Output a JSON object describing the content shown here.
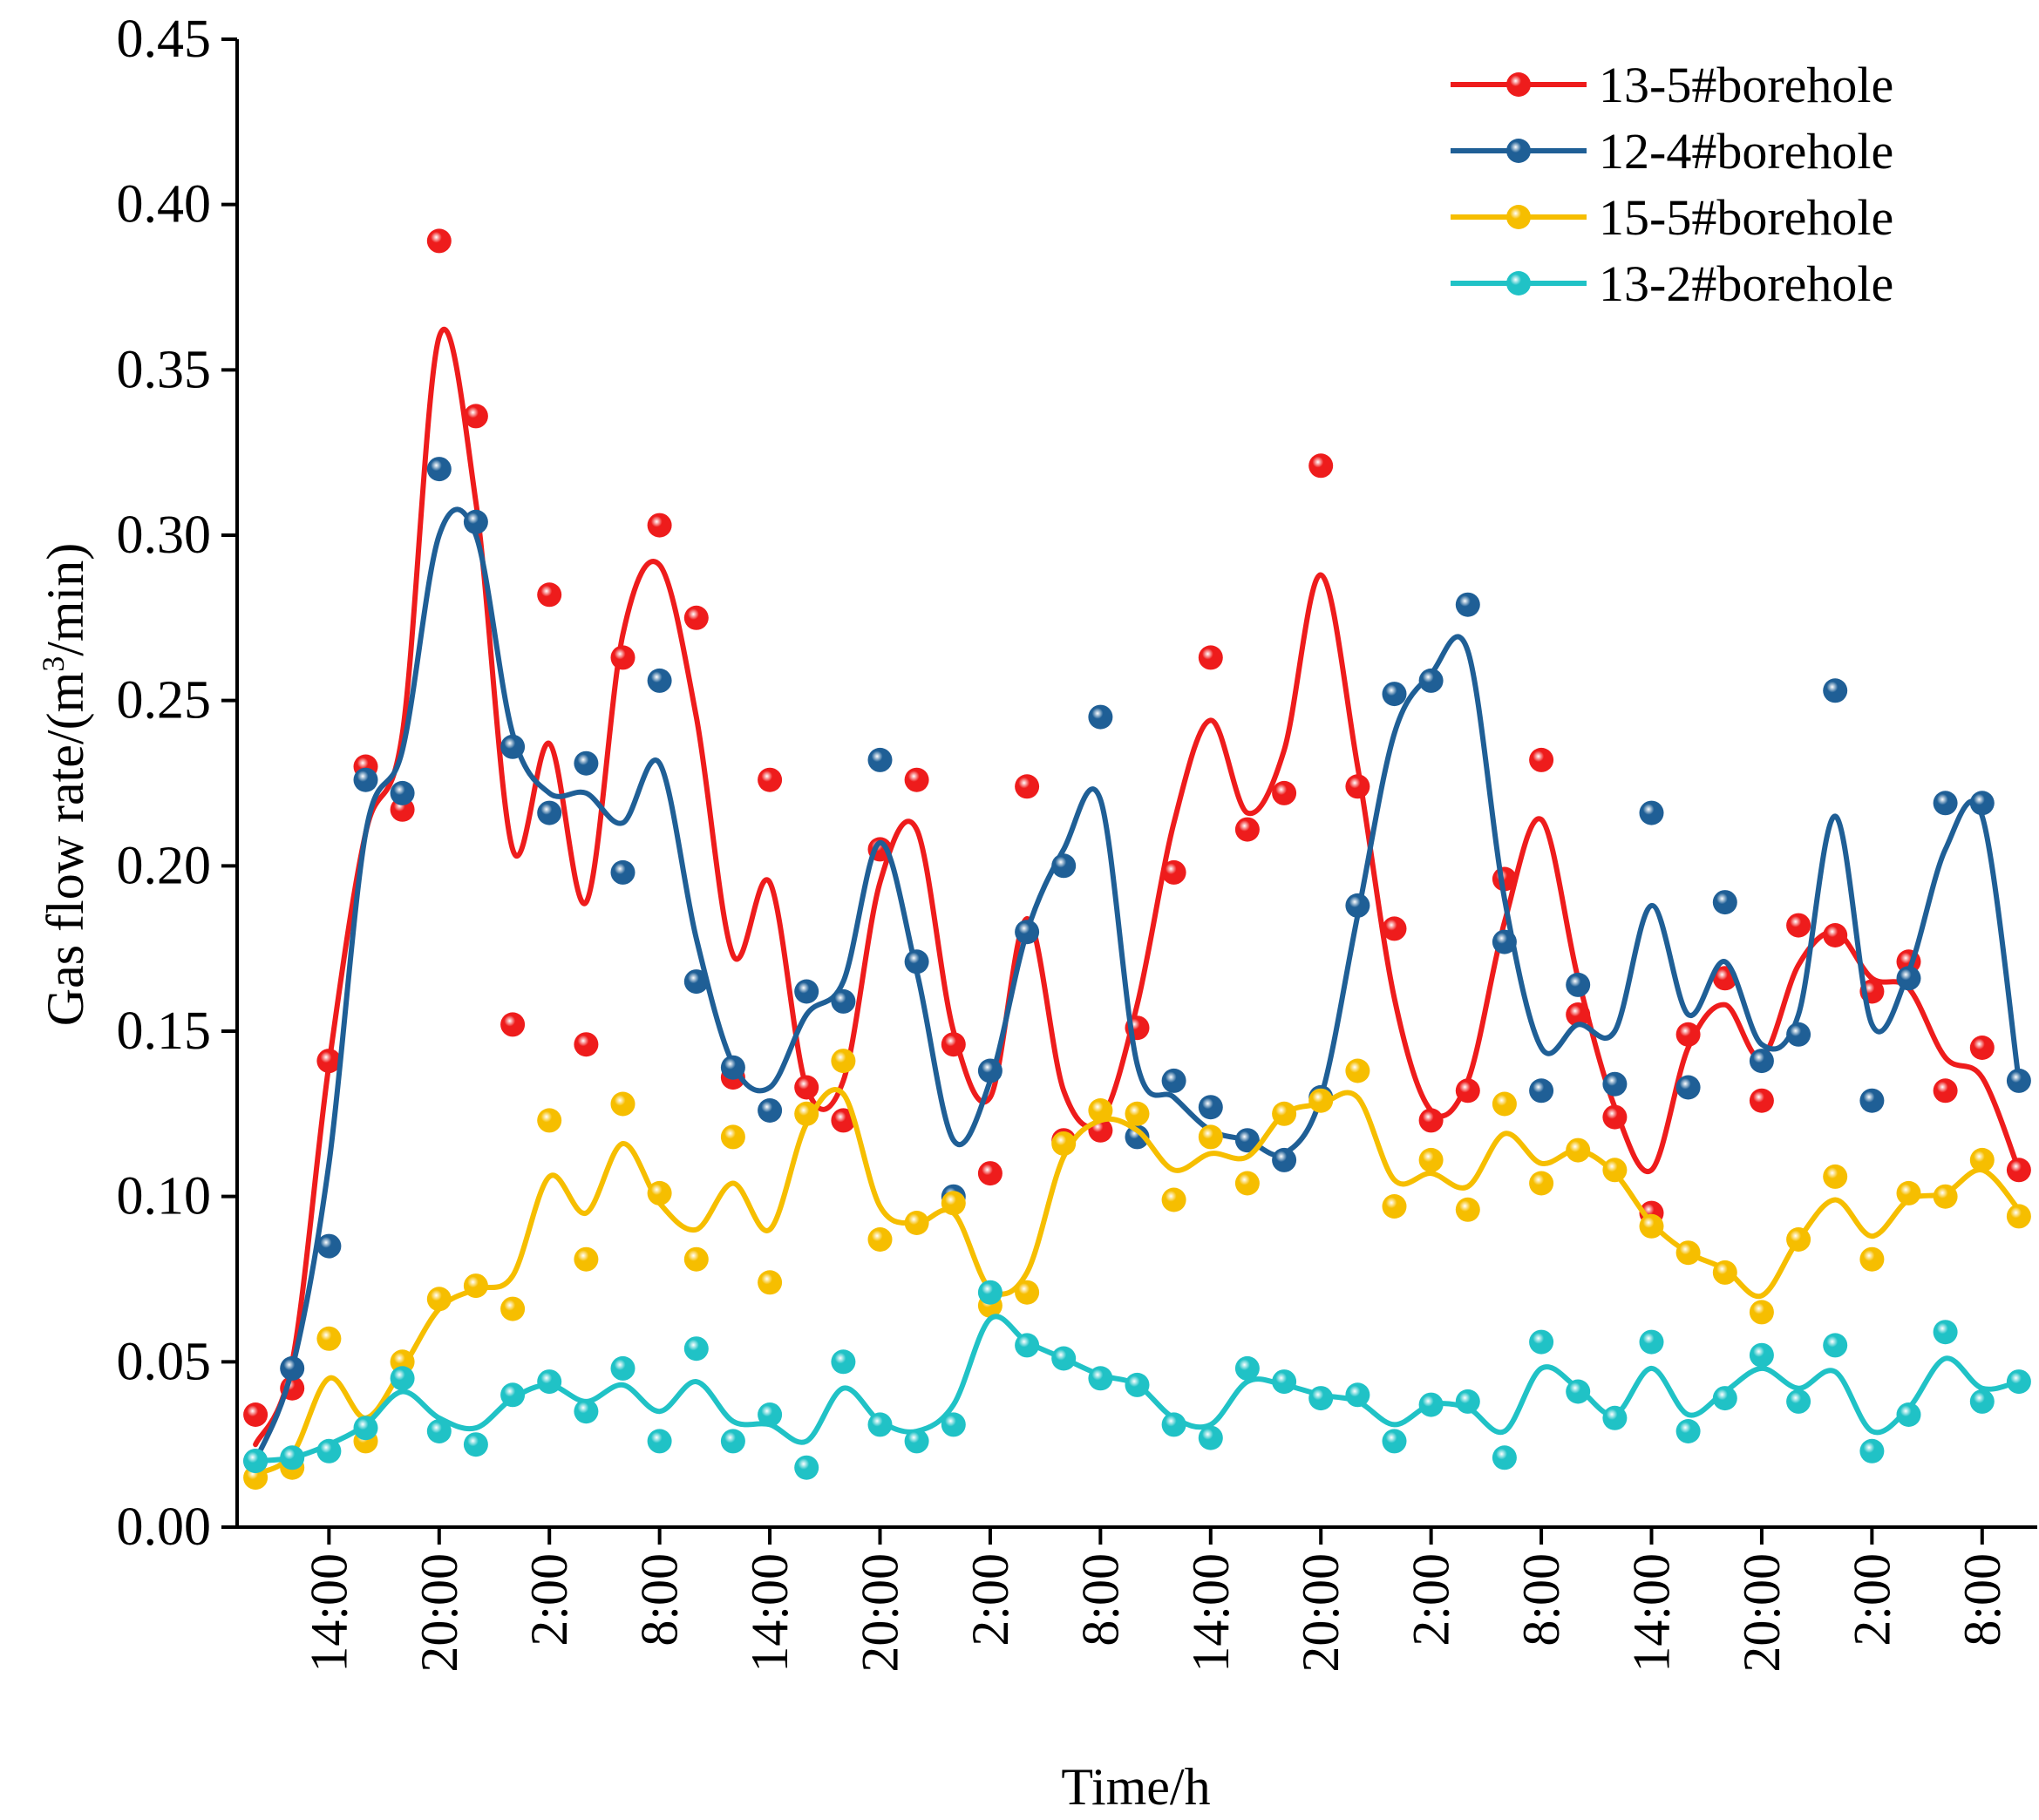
{
  "chart_data": {
    "type": "line",
    "title": "",
    "xlabel": "Time/h",
    "ylabel_prefix": "Gas flow rate/(m",
    "ylabel_superscript": "3",
    "ylabel_suffix": "/min)",
    "ylim": [
      0,
      0.45
    ],
    "yticks": [
      {
        "value": 0.0,
        "label": "0.00"
      },
      {
        "value": 0.05,
        "label": "0.05"
      },
      {
        "value": 0.1,
        "label": "0.10"
      },
      {
        "value": 0.15,
        "label": "0.15"
      },
      {
        "value": 0.2,
        "label": "0.20"
      },
      {
        "value": 0.25,
        "label": "0.25"
      },
      {
        "value": 0.3,
        "label": "0.30"
      },
      {
        "value": 0.35,
        "label": "0.35"
      },
      {
        "value": 0.4,
        "label": "0.40"
      },
      {
        "value": 0.45,
        "label": "0.45"
      }
    ],
    "xlim": [
      -0.5,
      48.5
    ],
    "xticks": [
      {
        "index": 2,
        "label": "14:00"
      },
      {
        "index": 5,
        "label": "20:00"
      },
      {
        "index": 8,
        "label": "2:00"
      },
      {
        "index": 11,
        "label": "8:00"
      },
      {
        "index": 14,
        "label": "14:00"
      },
      {
        "index": 17,
        "label": "20:00"
      },
      {
        "index": 20,
        "label": "2:00"
      },
      {
        "index": 23,
        "label": "8:00"
      },
      {
        "index": 26,
        "label": "14:00"
      },
      {
        "index": 29,
        "label": "20:00"
      },
      {
        "index": 32,
        "label": "2:00"
      },
      {
        "index": 35,
        "label": "8:00"
      },
      {
        "index": 38,
        "label": "14:00"
      },
      {
        "index": 41,
        "label": "20:00"
      },
      {
        "index": 44,
        "label": "2:00"
      },
      {
        "index": 47,
        "label": "8:00"
      }
    ],
    "x_note": "Observations every 2 h, indices 0..48",
    "legend_position": "top-right",
    "series": [
      {
        "name": "13-5#borehole",
        "color": "#ee1c1c",
        "points": [
          0.034,
          0.042,
          0.141,
          0.23,
          0.217,
          0.389,
          0.336,
          0.152,
          0.282,
          0.146,
          0.263,
          0.303,
          0.275,
          0.136,
          0.226,
          0.133,
          0.123,
          0.205,
          0.226,
          0.146,
          0.107,
          0.224,
          0.117,
          0.12,
          0.151,
          0.198,
          0.263,
          0.211,
          0.222,
          0.321,
          0.224,
          0.181,
          0.123,
          0.132,
          0.196,
          0.232,
          0.155,
          0.124,
          0.095,
          0.149,
          0.166,
          0.129,
          0.182,
          0.179,
          0.162,
          0.171,
          0.132,
          0.145,
          0.108
        ],
        "curve": [
          0.025,
          0.05,
          0.14,
          0.21,
          0.24,
          0.36,
          0.31,
          0.205,
          0.237,
          0.189,
          0.27,
          0.291,
          0.245,
          0.173,
          0.195,
          0.133,
          0.135,
          0.195,
          0.211,
          0.15,
          0.13,
          0.184,
          0.132,
          0.123,
          0.158,
          0.213,
          0.244,
          0.216,
          0.235,
          0.288,
          0.23,
          0.16,
          0.126,
          0.135,
          0.183,
          0.214,
          0.166,
          0.127,
          0.108,
          0.145,
          0.158,
          0.142,
          0.17,
          0.18,
          0.166,
          0.163,
          0.142,
          0.136,
          0.108
        ]
      },
      {
        "name": "12-4#borehole",
        "color": "#1f5f96",
        "points": [
          0.02,
          0.048,
          0.085,
          0.226,
          0.222,
          0.32,
          0.304,
          0.236,
          0.216,
          0.231,
          0.198,
          0.256,
          0.165,
          0.139,
          0.126,
          0.162,
          0.159,
          0.232,
          0.171,
          0.1,
          0.138,
          0.18,
          0.2,
          0.245,
          0.118,
          0.135,
          0.127,
          0.117,
          0.111,
          0.13,
          0.188,
          0.252,
          0.256,
          0.279,
          0.177,
          0.132,
          0.164,
          0.134,
          0.216,
          0.133,
          0.189,
          0.141,
          0.149,
          0.253,
          0.129,
          0.166,
          0.219,
          0.219,
          0.135
        ],
        "curve": [
          0.02,
          0.048,
          0.11,
          0.21,
          0.235,
          0.3,
          0.3,
          0.24,
          0.222,
          0.222,
          0.213,
          0.231,
          0.178,
          0.14,
          0.133,
          0.155,
          0.165,
          0.207,
          0.168,
          0.117,
          0.135,
          0.18,
          0.205,
          0.22,
          0.14,
          0.13,
          0.12,
          0.117,
          0.113,
          0.13,
          0.185,
          0.24,
          0.258,
          0.265,
          0.19,
          0.145,
          0.152,
          0.15,
          0.188,
          0.155,
          0.171,
          0.146,
          0.155,
          0.215,
          0.152,
          0.168,
          0.205,
          0.215,
          0.135
        ]
      },
      {
        "name": "15-5#borehole",
        "color": "#f6be00",
        "points": [
          0.015,
          0.018,
          0.057,
          0.026,
          0.05,
          0.069,
          0.073,
          0.066,
          0.123,
          0.081,
          0.128,
          0.101,
          0.081,
          0.118,
          0.074,
          0.125,
          0.141,
          0.087,
          0.092,
          0.098,
          0.067,
          0.071,
          0.116,
          0.126,
          0.125,
          0.099,
          0.118,
          0.104,
          0.125,
          0.129,
          0.138,
          0.097,
          0.111,
          0.096,
          0.128,
          0.104,
          0.114,
          0.108,
          0.091,
          0.083,
          0.077,
          0.065,
          0.087,
          0.106,
          0.081,
          0.101,
          0.1,
          0.111,
          0.094
        ],
        "curve": [
          0.016,
          0.022,
          0.045,
          0.033,
          0.048,
          0.066,
          0.072,
          0.076,
          0.106,
          0.095,
          0.116,
          0.098,
          0.09,
          0.104,
          0.09,
          0.122,
          0.131,
          0.097,
          0.092,
          0.095,
          0.072,
          0.077,
          0.112,
          0.123,
          0.12,
          0.108,
          0.113,
          0.112,
          0.125,
          0.128,
          0.13,
          0.105,
          0.107,
          0.103,
          0.119,
          0.11,
          0.114,
          0.107,
          0.092,
          0.083,
          0.078,
          0.07,
          0.087,
          0.099,
          0.088,
          0.099,
          0.101,
          0.108,
          0.096
        ]
      },
      {
        "name": "13-2#borehole",
        "color": "#20c2c6",
        "points": [
          0.02,
          0.021,
          0.023,
          0.03,
          0.045,
          0.029,
          0.025,
          0.04,
          0.044,
          0.035,
          0.048,
          0.026,
          0.054,
          0.026,
          0.034,
          0.018,
          0.05,
          0.031,
          0.026,
          0.031,
          0.071,
          0.055,
          0.051,
          0.045,
          0.043,
          0.031,
          0.027,
          0.048,
          0.044,
          0.039,
          0.04,
          0.026,
          0.037,
          0.038,
          0.021,
          0.056,
          0.041,
          0.033,
          0.056,
          0.029,
          0.039,
          0.052,
          0.038,
          0.055,
          0.023,
          0.034,
          0.059,
          0.038,
          0.044
        ],
        "curve": [
          0.02,
          0.021,
          0.025,
          0.031,
          0.041,
          0.033,
          0.03,
          0.039,
          0.043,
          0.038,
          0.043,
          0.035,
          0.044,
          0.032,
          0.031,
          0.026,
          0.042,
          0.032,
          0.029,
          0.037,
          0.063,
          0.056,
          0.051,
          0.046,
          0.043,
          0.033,
          0.031,
          0.044,
          0.043,
          0.04,
          0.038,
          0.031,
          0.037,
          0.036,
          0.029,
          0.048,
          0.042,
          0.034,
          0.048,
          0.034,
          0.041,
          0.048,
          0.042,
          0.047,
          0.029,
          0.036,
          0.051,
          0.042,
          0.044
        ]
      }
    ]
  }
}
